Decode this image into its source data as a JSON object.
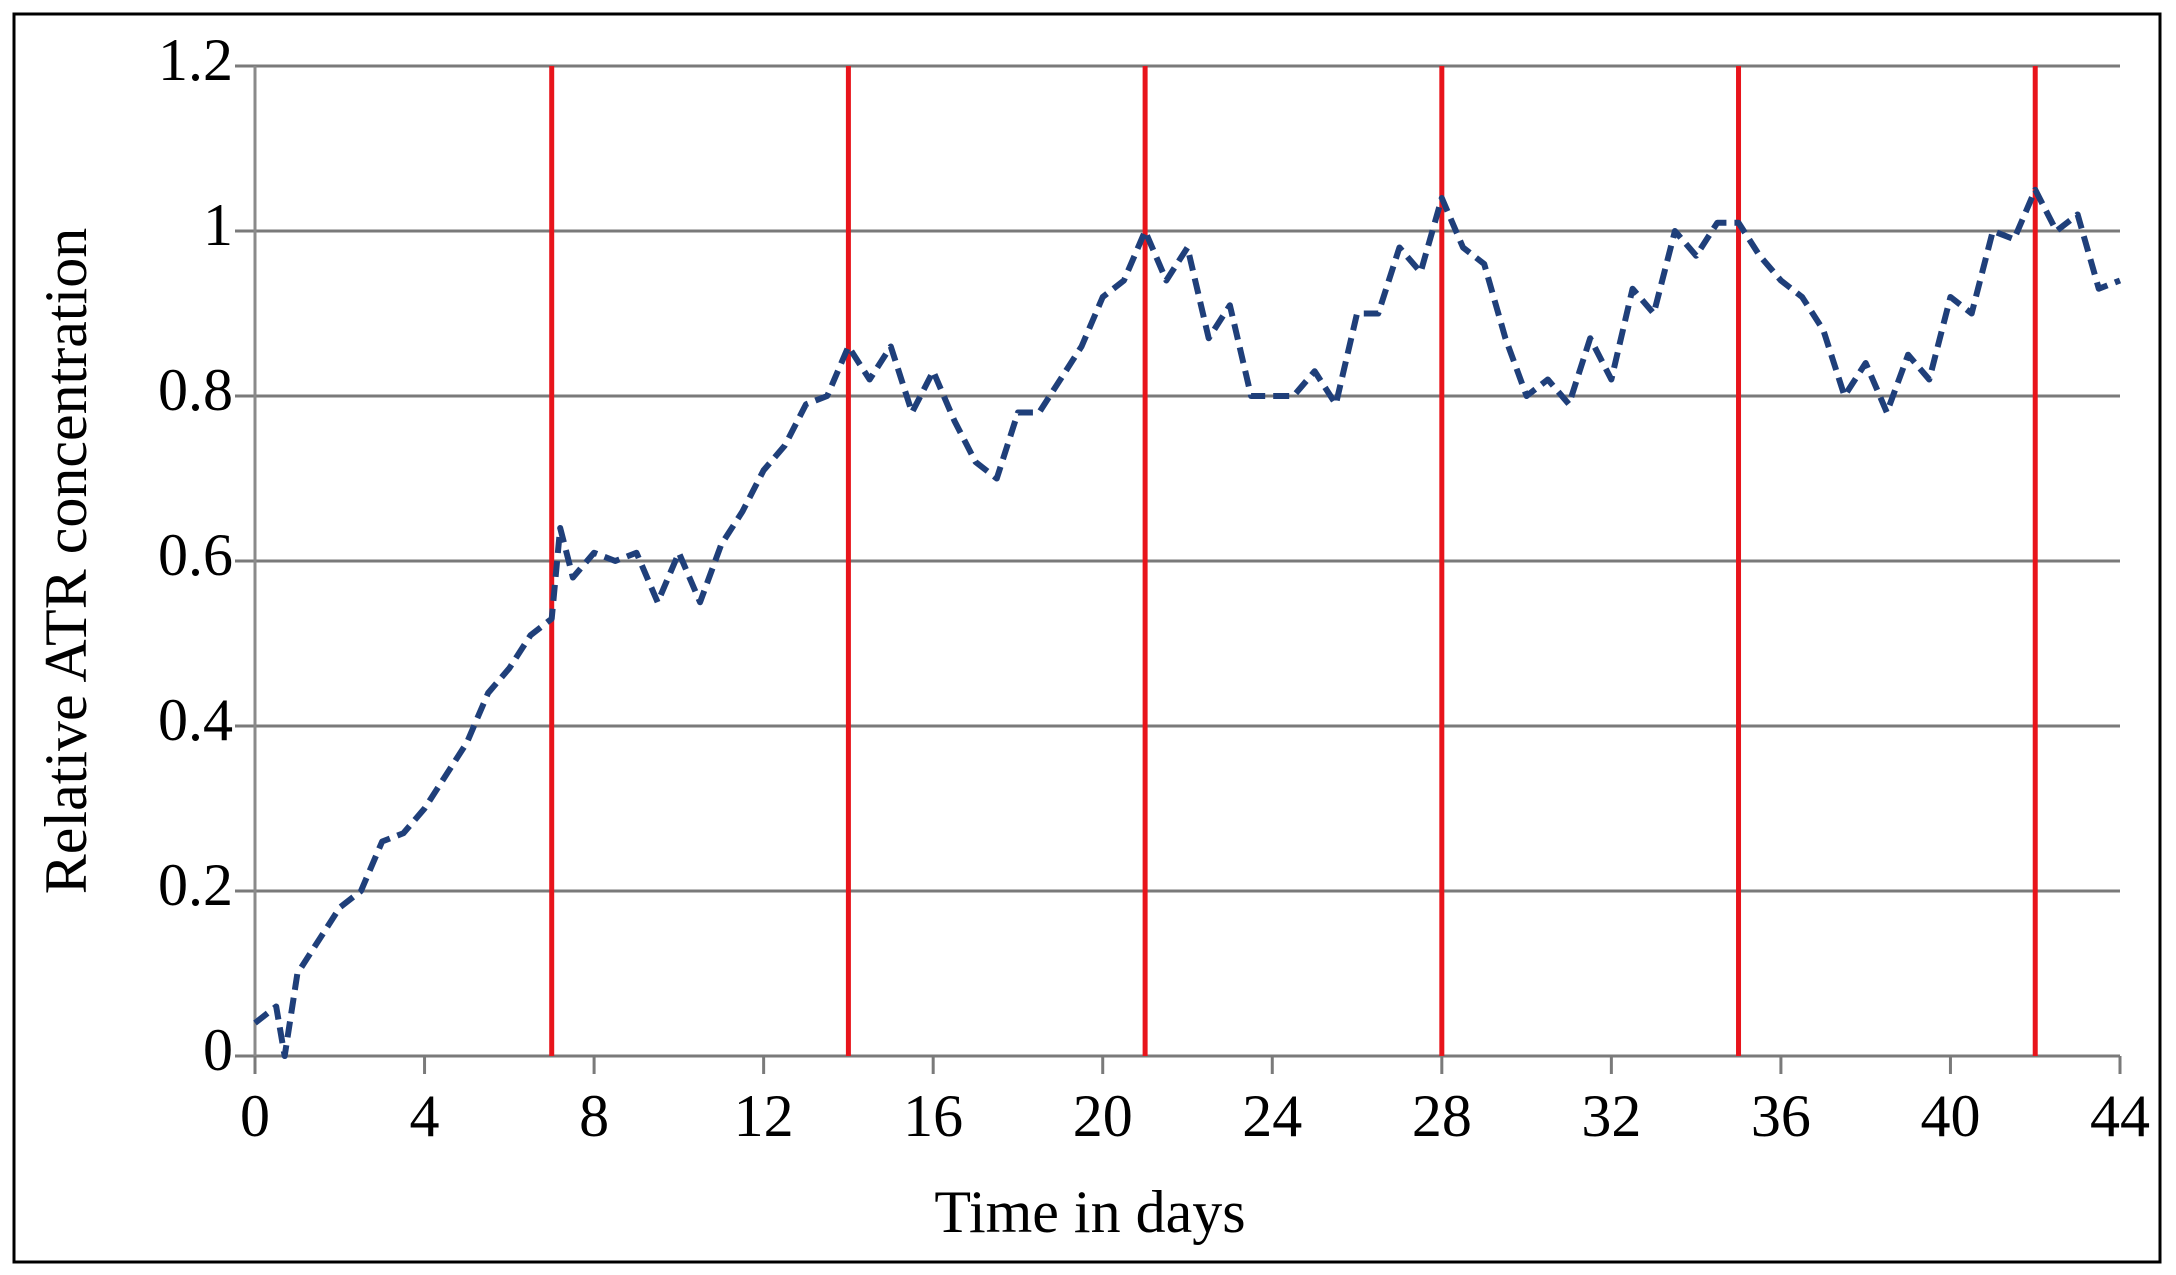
{
  "chart_data": {
    "type": "line",
    "xlabel": "Time in days",
    "ylabel": "Relative ATR concentration",
    "xlim": [
      0,
      44
    ],
    "ylim": [
      0,
      1.2
    ],
    "xticks": [
      0,
      4,
      8,
      12,
      16,
      20,
      24,
      28,
      32,
      36,
      40,
      44
    ],
    "yticks": [
      0,
      0.2,
      0.4,
      0.6,
      0.8,
      1,
      1.2
    ],
    "grid": true,
    "vertical_lines": [
      7,
      14,
      21,
      28,
      35,
      42
    ],
    "vertical_line_color": "#e8141b",
    "series": [
      {
        "color": "#1f3f7a",
        "dashed": true,
        "x": [
          0,
          0.5,
          0.7,
          1,
          1.5,
          2,
          2.5,
          3,
          3.5,
          4,
          4.5,
          5,
          5.5,
          6,
          6.5,
          7,
          7.2,
          7.5,
          8,
          8.5,
          9,
          9.5,
          10,
          10.5,
          11,
          11.5,
          12,
          12.5,
          13,
          13.5,
          14,
          14.5,
          15,
          15.5,
          16,
          16.5,
          17,
          17.5,
          18,
          18.5,
          19,
          19.5,
          20,
          20.5,
          21,
          21.5,
          22,
          22.5,
          23,
          23.5,
          24,
          24.5,
          25,
          25.5,
          26,
          26.5,
          27,
          27.5,
          28,
          28.5,
          29,
          29.5,
          30,
          30.5,
          31,
          31.5,
          32,
          32.5,
          33,
          33.5,
          34,
          34.5,
          35,
          35.5,
          36,
          36.5,
          37,
          37.5,
          38,
          38.5,
          39,
          39.5,
          40,
          40.5,
          41,
          41.5,
          42,
          42.5,
          43,
          43.5,
          44
        ],
        "values": [
          0.04,
          0.06,
          0.0,
          0.1,
          0.14,
          0.18,
          0.2,
          0.26,
          0.27,
          0.3,
          0.34,
          0.38,
          0.44,
          0.47,
          0.51,
          0.53,
          0.64,
          0.58,
          0.61,
          0.6,
          0.61,
          0.55,
          0.61,
          0.55,
          0.62,
          0.66,
          0.71,
          0.74,
          0.79,
          0.8,
          0.86,
          0.82,
          0.86,
          0.78,
          0.83,
          0.77,
          0.72,
          0.7,
          0.78,
          0.78,
          0.82,
          0.86,
          0.92,
          0.94,
          1.0,
          0.94,
          0.98,
          0.87,
          0.91,
          0.8,
          0.8,
          0.8,
          0.83,
          0.79,
          0.9,
          0.9,
          0.98,
          0.95,
          1.04,
          0.98,
          0.96,
          0.87,
          0.8,
          0.82,
          0.79,
          0.87,
          0.82,
          0.93,
          0.9,
          1.0,
          0.97,
          1.01,
          1.01,
          0.97,
          0.94,
          0.92,
          0.88,
          0.8,
          0.84,
          0.78,
          0.85,
          0.82,
          0.92,
          0.9,
          1.0,
          0.99,
          1.05,
          1.0,
          1.02,
          0.93,
          0.94
        ]
      }
    ]
  }
}
